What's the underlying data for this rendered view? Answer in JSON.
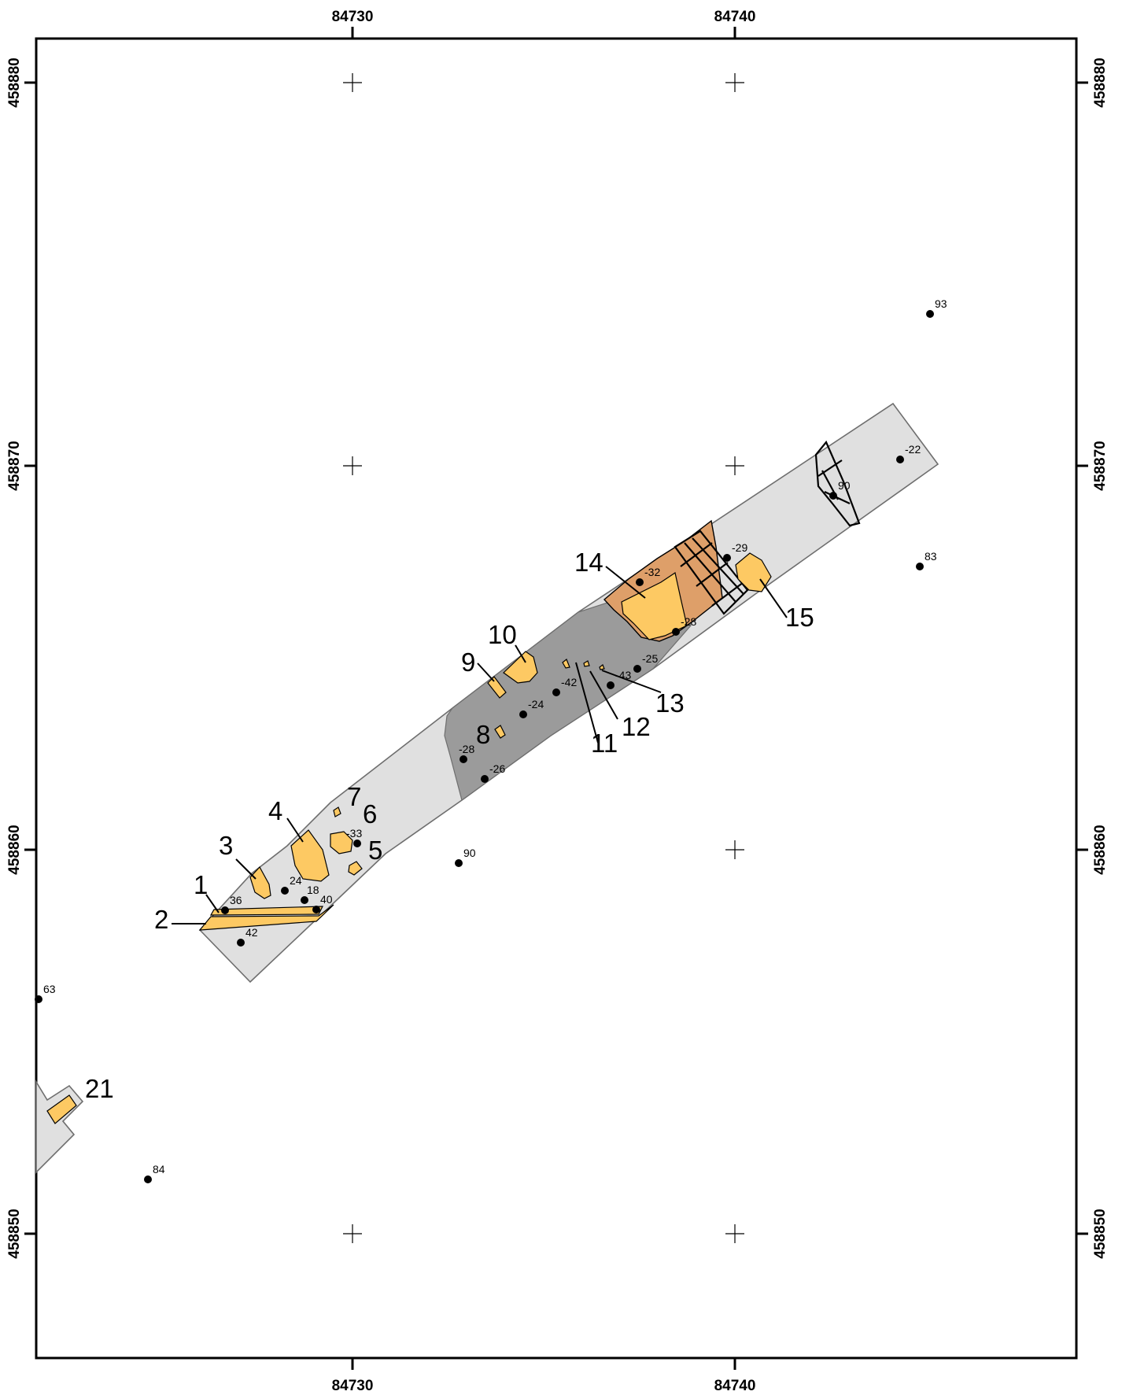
{
  "grid": {
    "x_labels": [
      "84730",
      "84740"
    ],
    "y_labels": [
      "458880",
      "458870",
      "458860",
      "458850"
    ]
  },
  "features": [
    "1",
    "2",
    "3",
    "4",
    "5",
    "6",
    "7",
    "8",
    "9",
    "10",
    "11",
    "12",
    "13",
    "14",
    "15",
    "21"
  ],
  "elevations": [
    "93",
    "-22",
    "90",
    "-29",
    "83",
    "-32",
    "-28",
    "-25",
    "-43",
    "-42",
    "-24",
    "-28",
    "-26",
    "90",
    "-33",
    "24",
    "18",
    "36",
    "40",
    "42",
    "63",
    "84"
  ],
  "colors": {
    "trench": "#e0e0e0",
    "dark_layer": "#9b9b9b",
    "orange_layer": "#de9f69",
    "feature_fill": "#fdc963"
  }
}
